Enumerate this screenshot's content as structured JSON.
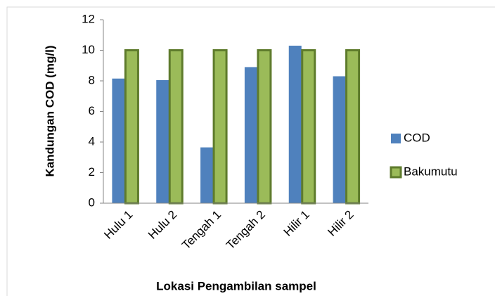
{
  "chart_data": {
    "type": "bar",
    "categories": [
      "Hulu 1",
      "Hulu 2",
      "Tengah 1",
      "Tengah 2",
      "Hilir 1",
      "Hilir 2"
    ],
    "series": [
      {
        "name": "COD",
        "color": "#4f81bd",
        "values": [
          8.15,
          8.05,
          3.65,
          8.9,
          10.3,
          8.3
        ]
      },
      {
        "name": "Bakumutu",
        "color": "#9bbb59",
        "values": [
          10,
          10,
          10,
          10,
          10,
          10
        ]
      }
    ],
    "ylabel": "Kandungan COD (mg/l)",
    "xlabel": "Lokasi Pengambilan sampel",
    "ylim": [
      0,
      12
    ],
    "yticks": [
      0,
      2,
      4,
      6,
      8,
      10,
      12
    ],
    "grid": false,
    "legend": "right"
  }
}
